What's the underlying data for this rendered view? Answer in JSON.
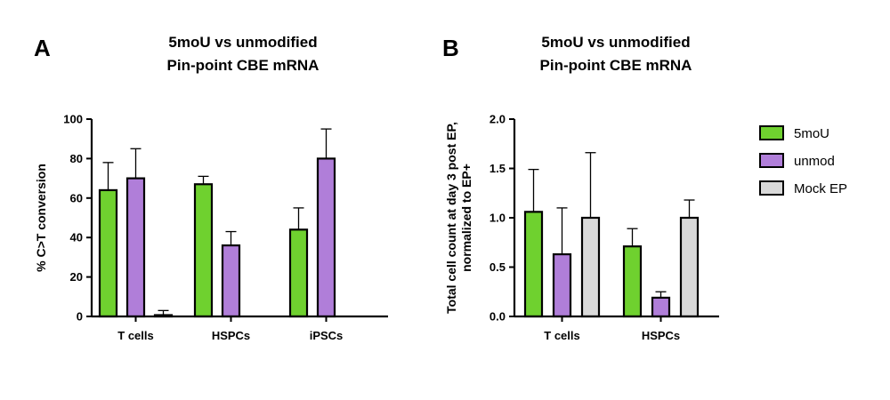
{
  "colors": {
    "5moU": "#6fd12f",
    "unmod": "#b07ed9",
    "Mock EP": "#d9d9d9"
  },
  "legend": {
    "items": [
      "5moU",
      "unmod",
      "Mock EP"
    ]
  },
  "chart_data": [
    {
      "panel": "A",
      "type": "bar",
      "title": [
        "5moU vs unmodified",
        "Pin-point CBE mRNA"
      ],
      "xlabel": "",
      "ylabel": "% C>T conversion",
      "ylim": [
        0,
        100
      ],
      "yticks": [
        "0",
        "20",
        "40",
        "60",
        "80",
        "100"
      ],
      "categories": [
        "T cells",
        "HSPCs",
        "iPSCs"
      ],
      "series": [
        {
          "name": "5moU",
          "values": [
            64,
            67,
            44
          ],
          "errors": [
            14,
            4,
            11
          ]
        },
        {
          "name": "unmod",
          "values": [
            70,
            36,
            80
          ],
          "errors": [
            15,
            7,
            15
          ]
        },
        {
          "name": "Mock EP",
          "values": [
            0.5,
            null,
            null
          ],
          "errors": [
            2.5,
            null,
            null
          ]
        }
      ]
    },
    {
      "panel": "B",
      "type": "bar",
      "title": [
        "5moU vs unmodified",
        "Pin-point CBE mRNA"
      ],
      "xlabel": "",
      "ylabel": [
        "Total cell count at day 3 post EP,",
        "normalized to EP+"
      ],
      "ylim": [
        0,
        2.0
      ],
      "yticks": [
        "0.0",
        "0.5",
        "1.0",
        "1.5",
        "2.0"
      ],
      "categories": [
        "T cells",
        "HSPCs"
      ],
      "series": [
        {
          "name": "5moU",
          "values": [
            1.06,
            0.71
          ],
          "errors": [
            0.43,
            0.18
          ]
        },
        {
          "name": "unmod",
          "values": [
            0.63,
            0.19
          ],
          "errors": [
            0.47,
            0.06
          ]
        },
        {
          "name": "Mock EP",
          "values": [
            1.0,
            1.0
          ],
          "errors": [
            0.66,
            0.18
          ]
        }
      ]
    }
  ]
}
